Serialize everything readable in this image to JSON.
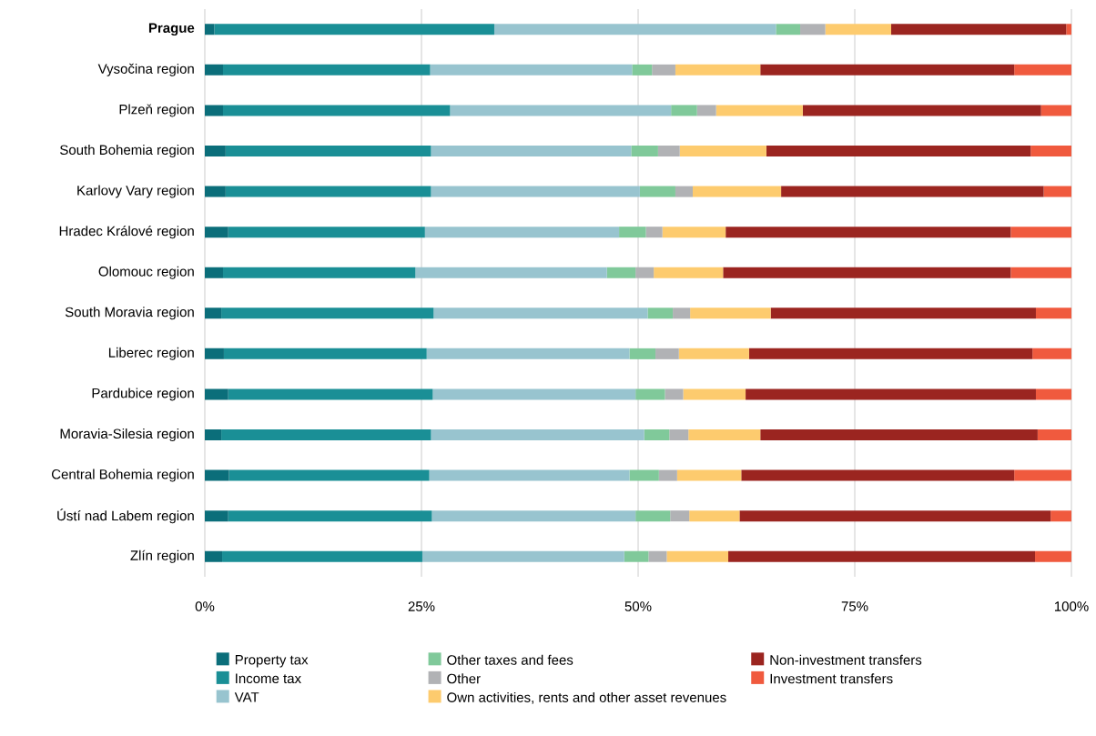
{
  "chart_data": {
    "type": "bar",
    "orientation": "horizontal",
    "stacked": true,
    "categories": [
      "**Prague**",
      "Vysočina region",
      "Plzeň region",
      "South Bohemia region",
      "Karlovy Vary region",
      "Hradec Králové region",
      "Olomouc region",
      "South Moravia region",
      "Liberec region",
      "Pardubice region",
      "Moravia-Silesia region",
      "Central Bohemia region",
      "Ústí nad Labem region",
      "Zlín region"
    ],
    "series": [
      {
        "name": "Property tax",
        "color": "#0b6e7a",
        "values": [
          1.1,
          2.1,
          2.1,
          2.4,
          2.4,
          2.7,
          2.1,
          1.9,
          2.2,
          2.7,
          1.9,
          2.8,
          2.7,
          2.0
        ]
      },
      {
        "name": "Income tax",
        "color": "#1a8f96",
        "values": [
          32.3,
          23.9,
          26.2,
          23.7,
          23.7,
          22.7,
          22.2,
          24.5,
          23.4,
          23.6,
          24.2,
          23.1,
          23.5,
          23.1
        ]
      },
      {
        "name": "VAT",
        "color": "#98c4cf",
        "values": [
          32.5,
          23.3,
          25.5,
          23.1,
          24.1,
          22.4,
          22.1,
          24.7,
          23.4,
          23.4,
          24.6,
          23.1,
          23.5,
          23.3
        ]
      },
      {
        "name": "Other taxes and fees",
        "color": "#80c99a",
        "values": [
          2.8,
          2.3,
          3.0,
          3.1,
          4.1,
          3.1,
          3.3,
          2.9,
          3.0,
          3.4,
          2.9,
          3.4,
          4.0,
          2.8
        ]
      },
      {
        "name": "Other",
        "color": "#b1b2b5",
        "values": [
          2.9,
          2.7,
          2.2,
          2.5,
          2.0,
          1.9,
          2.1,
          2.0,
          2.7,
          2.1,
          2.2,
          2.1,
          2.2,
          2.1
        ]
      },
      {
        "name": "Own activities, rents and other asset revenues",
        "color": "#fdcb6e",
        "values": [
          7.6,
          9.8,
          10.0,
          10.0,
          10.2,
          7.3,
          8.0,
          9.3,
          8.1,
          7.2,
          8.3,
          7.4,
          5.8,
          7.1
        ]
      },
      {
        "name": "Non-investment transfers",
        "color": "#9b2520",
        "values": [
          20.2,
          29.3,
          27.5,
          30.5,
          30.3,
          32.9,
          33.2,
          30.6,
          32.7,
          33.5,
          32.0,
          31.5,
          35.9,
          35.4
        ]
      },
      {
        "name": "Investment transfers",
        "color": "#f05a3e",
        "values": [
          0.6,
          6.6,
          3.5,
          4.7,
          3.2,
          7.0,
          7.0,
          4.1,
          4.5,
          4.1,
          3.9,
          6.6,
          2.4,
          4.2
        ]
      }
    ],
    "xlim": [
      0,
      100
    ],
    "xticks": [
      {
        "value": 0,
        "label": "0%"
      },
      {
        "value": 25,
        "label": "25%"
      },
      {
        "value": 50,
        "label": "50%"
      },
      {
        "value": 75,
        "label": "75%"
      },
      {
        "value": 100,
        "label": "100%"
      }
    ],
    "grid": "x",
    "legend": "bottom"
  }
}
